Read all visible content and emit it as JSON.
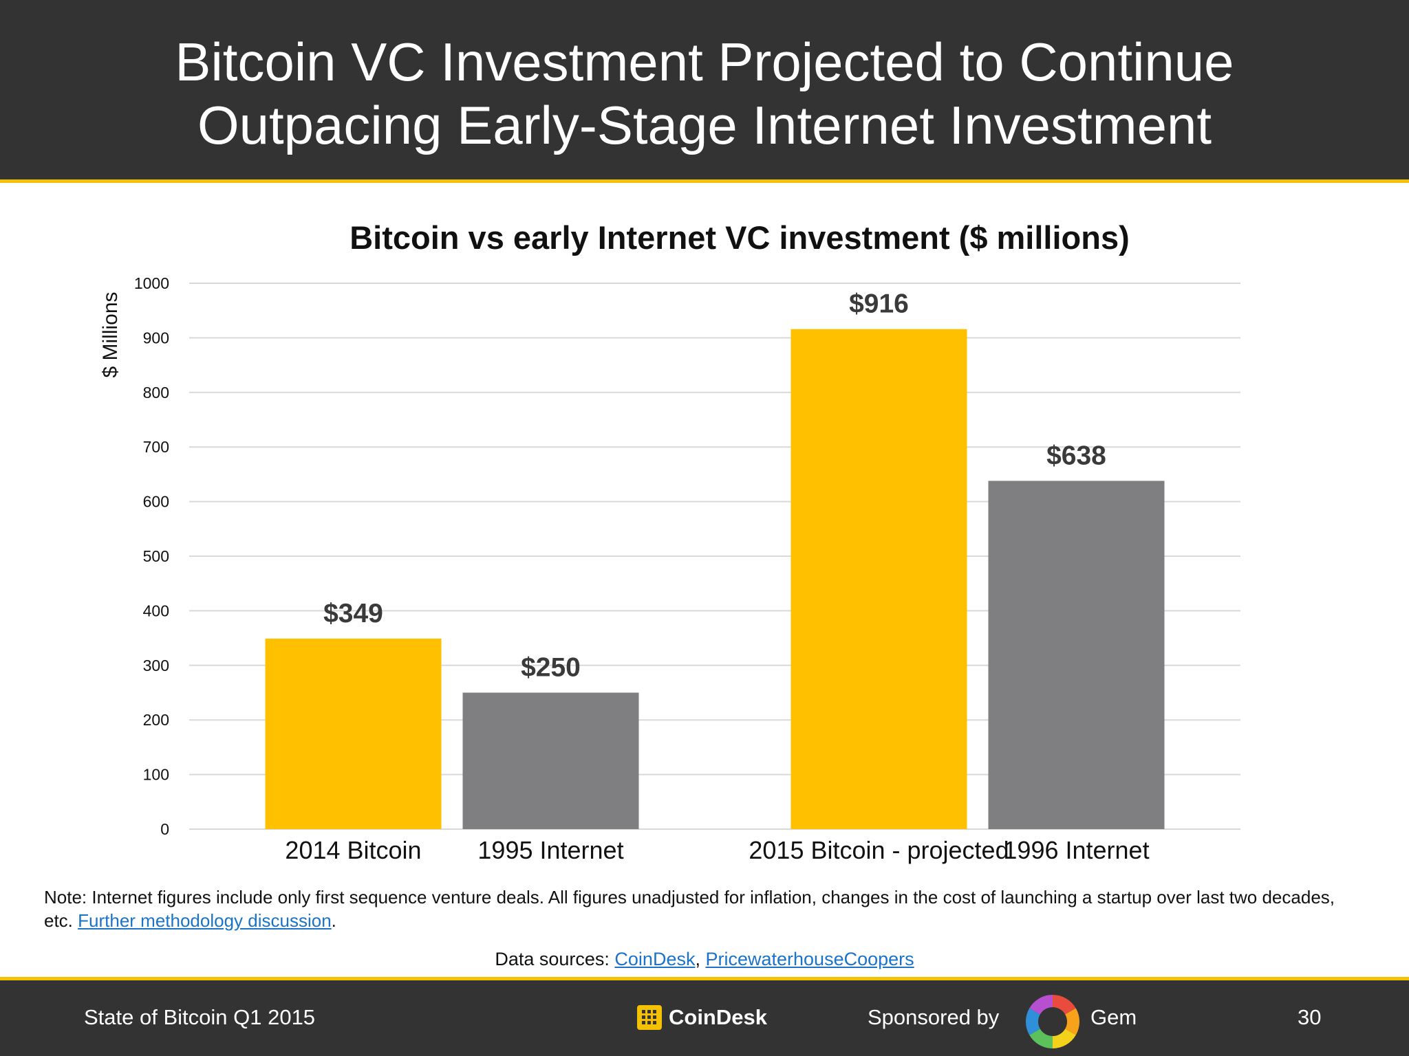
{
  "slide": {
    "title_lines": [
      "Bitcoin VC Investment Projected to Continue",
      "Outpacing Early-Stage Internet Investment"
    ],
    "note_text": "Note: Internet figures include only first sequence venture deals. All figures unadjusted for inflation, changes in the cost of launching a startup over last two decades, etc. ",
    "note_link": "Further methodology discussion",
    "note_end": ".",
    "sources_label": "Data sources: ",
    "sources_links": [
      "CoinDesk",
      "PricewaterhouseCoopers"
    ],
    "sources_sep": ", "
  },
  "footer": {
    "left_text": "State of Bitcoin Q1 2015",
    "coindesk_logo": "CoinDesk",
    "sponsored_by": "Sponsored by",
    "sponsor_name": "Gem",
    "page_number": "30"
  },
  "chart_data": {
    "type": "bar",
    "title": "Bitcoin vs early Internet VC investment ($ millions)",
    "ylabel": "$ Millions",
    "xlabel": "",
    "ylim": [
      0,
      1000
    ],
    "yticks": [
      0,
      100,
      200,
      300,
      400,
      500,
      600,
      700,
      800,
      900,
      1000
    ],
    "grid": true,
    "groups": [
      {
        "bars": [
          {
            "category": "2014 Bitcoin",
            "value": 349,
            "label": "$349",
            "color": "#ffc000"
          },
          {
            "category": "1995 Internet",
            "value": 250,
            "label": "$250",
            "color": "#7f7e80"
          }
        ]
      },
      {
        "bars": [
          {
            "category": "2015 Bitcoin - projected",
            "value": 916,
            "label": "$916",
            "color": "#ffc000"
          },
          {
            "category": "1996 Internet",
            "value": 638,
            "label": "$638",
            "color": "#7f7e80"
          }
        ]
      }
    ]
  }
}
